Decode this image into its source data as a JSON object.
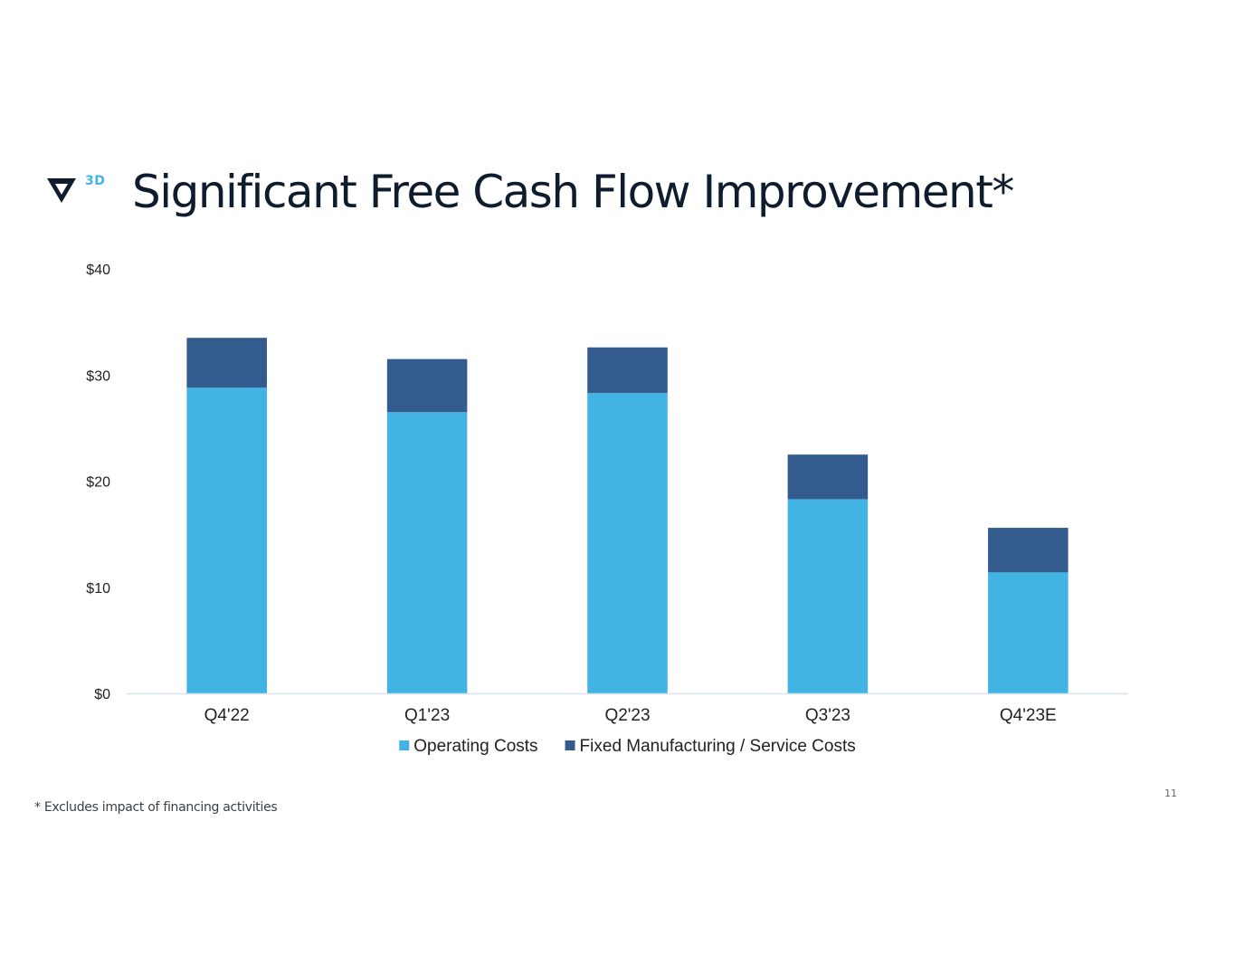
{
  "logo": {
    "icon": "v-triangle-logo-icon",
    "text": "3D",
    "color": "#41b4e4",
    "mark_color": "#0f1c2e"
  },
  "slide": {
    "title": "Significant Free Cash Flow Improvement*",
    "footnote": "*  Excludes impact of financing activities",
    "page_number": "11"
  },
  "chart_data": {
    "type": "bar",
    "stacked": true,
    "categories": [
      "Q4'22",
      "Q1'23",
      "Q2'23",
      "Q3'23",
      "Q4'23E"
    ],
    "series": [
      {
        "name": "Operating Costs",
        "color": "#41b4e4",
        "values": [
          28.8,
          26.5,
          28.3,
          18.3,
          11.4
        ]
      },
      {
        "name": "Fixed Manufacturing / Service Costs",
        "color": "#335b8e",
        "values": [
          4.7,
          5.0,
          4.3,
          4.2,
          4.2
        ]
      }
    ],
    "y_ticks": [
      "$0",
      "$10",
      "$20",
      "$30",
      "$40"
    ],
    "ylim": [
      0,
      40
    ],
    "grid": false,
    "legend": "bottom-center",
    "title": "",
    "xlabel": "",
    "ylabel": ""
  }
}
